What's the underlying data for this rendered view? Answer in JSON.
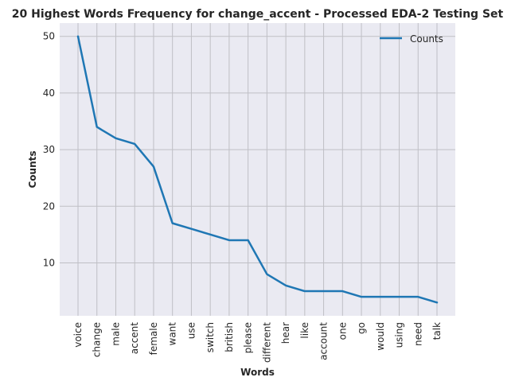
{
  "chart_data": {
    "type": "line",
    "title": "20 Highest Words Frequency for change_accent - Processed EDA-2 Testing Set",
    "xlabel": "Words",
    "ylabel": "Counts",
    "categories": [
      "voice",
      "change",
      "male",
      "accent",
      "female",
      "want",
      "use",
      "switch",
      "british",
      "please",
      "different",
      "hear",
      "like",
      "account",
      "one",
      "go",
      "would",
      "using",
      "need",
      "talk"
    ],
    "series": [
      {
        "name": "Counts",
        "values": [
          50,
          34,
          32,
          31,
          27,
          17,
          16,
          15,
          14,
          14,
          8,
          6,
          5,
          5,
          5,
          4,
          4,
          4,
          4,
          3
        ],
        "color": "#1f77b4"
      }
    ],
    "yticks": [
      10,
      20,
      30,
      40,
      50
    ],
    "ylim": [
      0.65,
      52.35
    ],
    "grid": true,
    "legend_position": "top-right",
    "colors": {
      "plot_background": "#eaeaf2",
      "grid": "#bfbfc5",
      "line": "#1f77b4"
    }
  }
}
